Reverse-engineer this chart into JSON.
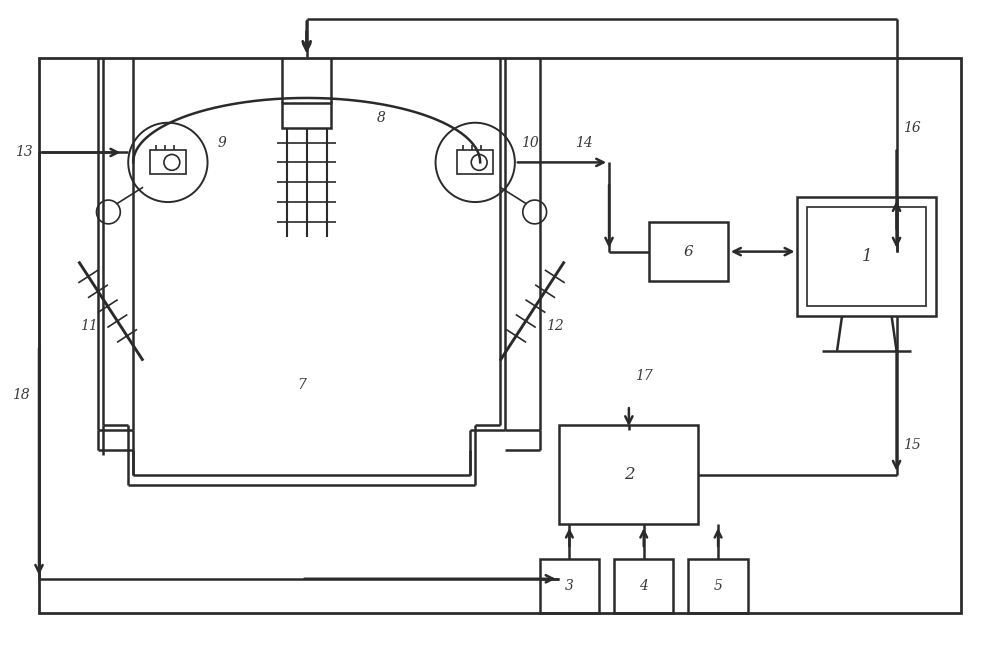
{
  "bg_color": "#ffffff",
  "line_color": "#2a2a2a",
  "label_color": "#3a3a3a",
  "figsize": [
    10.0,
    6.46
  ],
  "dpi": 100,
  "lw_main": 1.8,
  "lw_thin": 1.2
}
